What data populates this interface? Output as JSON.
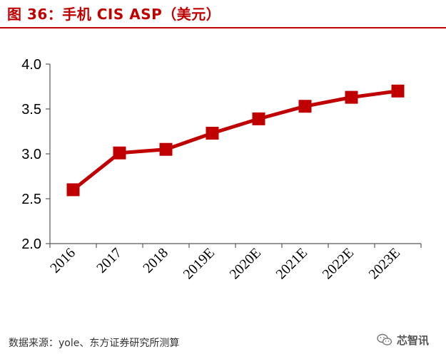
{
  "figure": {
    "title": "图 36：手机 CIS ASP（美元）",
    "source": "数据来源：yole、东方证券研究所测算",
    "watermark": "芯智讯",
    "watermark_icon": "wechat-icon"
  },
  "colors": {
    "accent": "#c00000",
    "axis": "#595959",
    "text": "#000000"
  },
  "chart_data": {
    "type": "line",
    "title": "图 36：手机 CIS ASP（美元）",
    "xlabel": "",
    "ylabel": "",
    "categories": [
      "2016",
      "2017",
      "2018",
      "2019E",
      "2020E",
      "2021E",
      "2022E",
      "2023E"
    ],
    "series": [
      {
        "values": [
          2.6,
          3.01,
          3.05,
          3.23,
          3.39,
          3.53,
          3.63,
          3.7
        ]
      }
    ],
    "ylim": [
      2.0,
      4.0
    ],
    "yticks": [
      "2.0",
      "2.5",
      "3.0",
      "3.5",
      "4.0"
    ],
    "grid": false,
    "legend": "none",
    "marker": "square"
  }
}
